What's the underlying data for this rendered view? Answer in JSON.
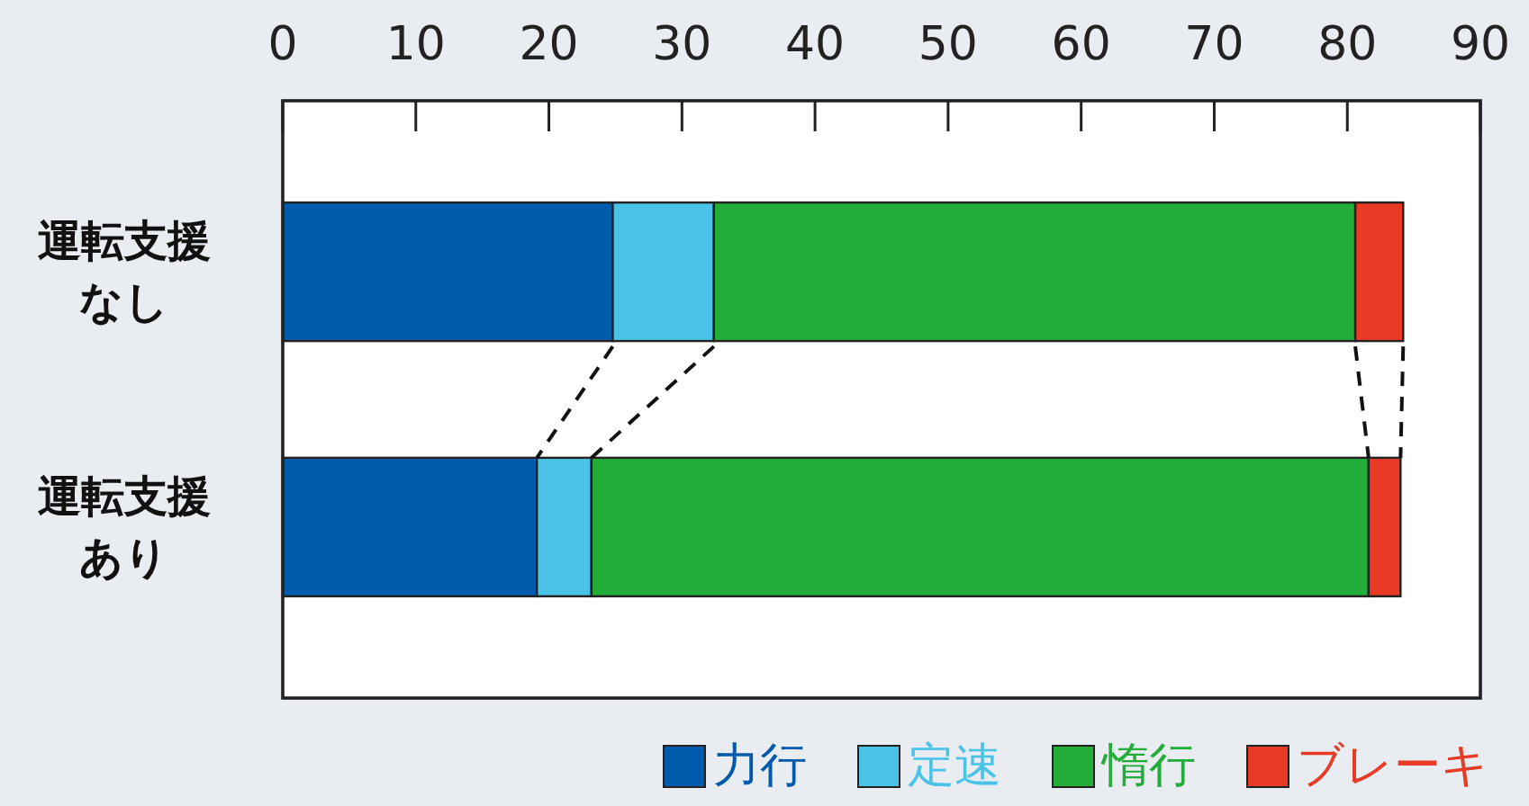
{
  "chart_data": {
    "type": "bar",
    "orientation": "horizontal",
    "stacked": true,
    "categories": [
      "運転支援なし",
      "運転支援あり"
    ],
    "series": [
      {
        "name": "力行",
        "color": "#005bac",
        "values": [
          24.8,
          19.1
        ]
      },
      {
        "name": "定速",
        "color": "#4bc3e8",
        "values": [
          7.6,
          4.1
        ]
      },
      {
        "name": "惰行",
        "color": "#22ac38",
        "values": [
          48.2,
          58.4
        ]
      },
      {
        "name": "ブレーキ",
        "color": "#e83a24",
        "values": [
          3.6,
          2.4
        ]
      }
    ],
    "xlim": [
      0,
      90
    ],
    "xticks": [
      0,
      10,
      20,
      30,
      40,
      50,
      60,
      70,
      80,
      90
    ],
    "legend": "bottom"
  }
}
